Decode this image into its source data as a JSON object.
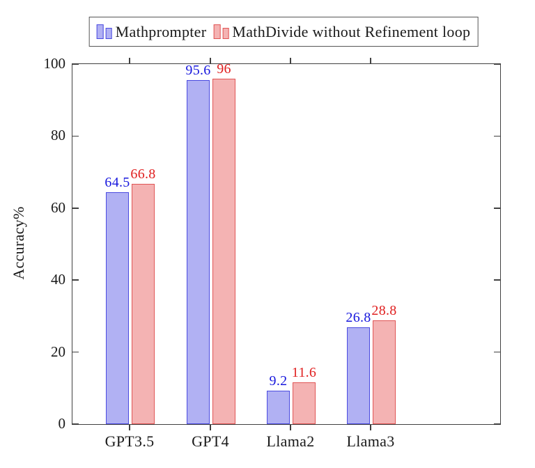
{
  "chart_data": {
    "type": "bar",
    "title": "",
    "categories": [
      "GPT3.5",
      "GPT4",
      "Llama2",
      "Llama3"
    ],
    "series": [
      {
        "name": "Mathprompter",
        "values": [
          64.5,
          95.6,
          9.2,
          26.8
        ],
        "labels": [
          "64.5",
          "95.6",
          "9.2",
          "26.8"
        ],
        "fill": "#b1b1f3",
        "border": "#4a4ae0",
        "label_color": "#1818dd"
      },
      {
        "name": "MathDivide without Refinement loop",
        "values": [
          66.8,
          96,
          11.6,
          28.8
        ],
        "labels": [
          "66.8",
          "96",
          "11.6",
          "28.8"
        ],
        "fill": "#f4b3b3",
        "border": "#e05555",
        "label_color": "#e02020"
      }
    ],
    "xlabel": "",
    "ylabel": "Accuracy%",
    "yticks": [
      "0",
      "20",
      "40",
      "60",
      "80",
      "100"
    ],
    "ylim": [
      0,
      100
    ],
    "grid": false,
    "legend_position": "top",
    "axis_color": "#404040"
  }
}
